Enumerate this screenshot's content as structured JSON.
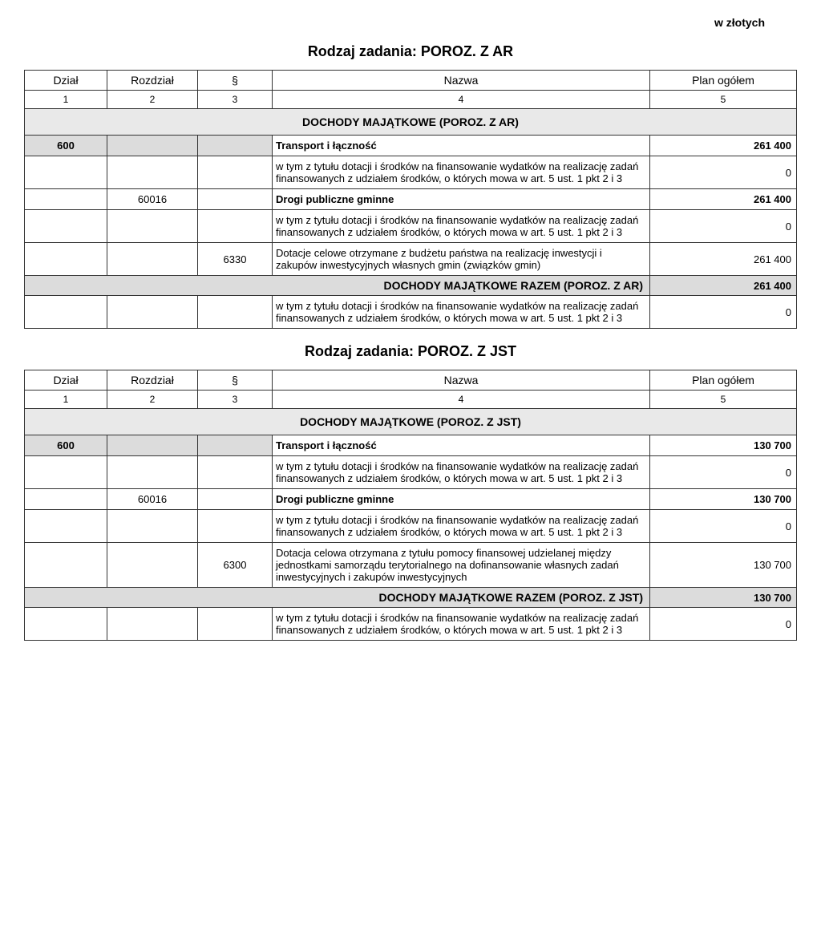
{
  "currency_note": "w złotych",
  "headers": {
    "dzial": "Dział",
    "rozdzial": "Rozdział",
    "par": "§",
    "nazwa": "Nazwa",
    "plan": "Plan ogółem",
    "n1": "1",
    "n2": "2",
    "n3": "3",
    "n4": "4",
    "n5": "5"
  },
  "sections": [
    {
      "title": "Rodzaj zadania: POROZ. Z AR",
      "group_title": "DOCHODY MAJĄTKOWE (POROZ. Z AR)",
      "rows": [
        {
          "dzial": "600",
          "rozdz": "",
          "par": "",
          "nazwa": "Transport i łączność",
          "plan": "261 400",
          "bold": true,
          "shaded_codes": true
        },
        {
          "dzial": "",
          "rozdz": "",
          "par": "",
          "nazwa": "w tym z tytułu dotacji i środków na finansowanie wydatków na realizację zadań finansowanych z udziałem środków, o których mowa w art. 5 ust. 1 pkt 2 i 3",
          "plan": "0"
        },
        {
          "dzial": "",
          "rozdz": "60016",
          "par": "",
          "nazwa": "Drogi publiczne gminne",
          "plan": "261 400",
          "bold": true
        },
        {
          "dzial": "",
          "rozdz": "",
          "par": "",
          "nazwa": "w tym z tytułu dotacji i środków na finansowanie wydatków na realizację zadań finansowanych z udziałem środków, o których mowa w art. 5 ust. 1 pkt 2 i 3",
          "plan": "0"
        },
        {
          "dzial": "",
          "rozdz": "",
          "par": "6330",
          "nazwa": "Dotacje celowe otrzymane z budżetu państwa na realizację inwestycji i zakupów inwestycyjnych własnych gmin (związków gmin)",
          "plan": "261 400"
        }
      ],
      "sum_label": "DOCHODY MAJĄTKOWE RAZEM (POROZ. Z AR)",
      "sum_value": "261 400",
      "sum_note": "w tym z tytułu dotacji i środków na finansowanie wydatków na realizację zadań finansowanych z udziałem środków, o których mowa w art. 5 ust. 1 pkt 2 i 3",
      "sum_note_value": "0"
    },
    {
      "title": "Rodzaj zadania: POROZ. Z JST",
      "group_title": "DOCHODY MAJĄTKOWE (POROZ. Z JST)",
      "rows": [
        {
          "dzial": "600",
          "rozdz": "",
          "par": "",
          "nazwa": "Transport i łączność",
          "plan": "130 700",
          "bold": true,
          "shaded_codes": true
        },
        {
          "dzial": "",
          "rozdz": "",
          "par": "",
          "nazwa": "w tym z tytułu dotacji i środków na finansowanie wydatków na realizację zadań finansowanych z udziałem środków, o których mowa w art. 5 ust. 1 pkt 2 i 3",
          "plan": "0"
        },
        {
          "dzial": "",
          "rozdz": "60016",
          "par": "",
          "nazwa": "Drogi publiczne gminne",
          "plan": "130 700",
          "bold": true
        },
        {
          "dzial": "",
          "rozdz": "",
          "par": "",
          "nazwa": "w tym z tytułu dotacji i środków na finansowanie wydatków na realizację zadań finansowanych z udziałem środków, o których mowa w art. 5 ust. 1 pkt 2 i 3",
          "plan": "0"
        },
        {
          "dzial": "",
          "rozdz": "",
          "par": "6300",
          "nazwa": "Dotacja celowa otrzymana z tytułu pomocy finansowej udzielanej między jednostkami samorządu terytorialnego na dofinansowanie własnych zadań inwestycyjnych i zakupów inwestycyjnych",
          "plan": "130 700"
        }
      ],
      "sum_label": "DOCHODY MAJĄTKOWE RAZEM (POROZ. Z JST)",
      "sum_value": "130 700",
      "sum_note": "w tym z tytułu dotacji i środków na finansowanie wydatków na realizację zadań finansowanych z udziałem środków, o których mowa w art. 5 ust. 1 pkt 2 i 3",
      "sum_note_value": "0"
    }
  ]
}
